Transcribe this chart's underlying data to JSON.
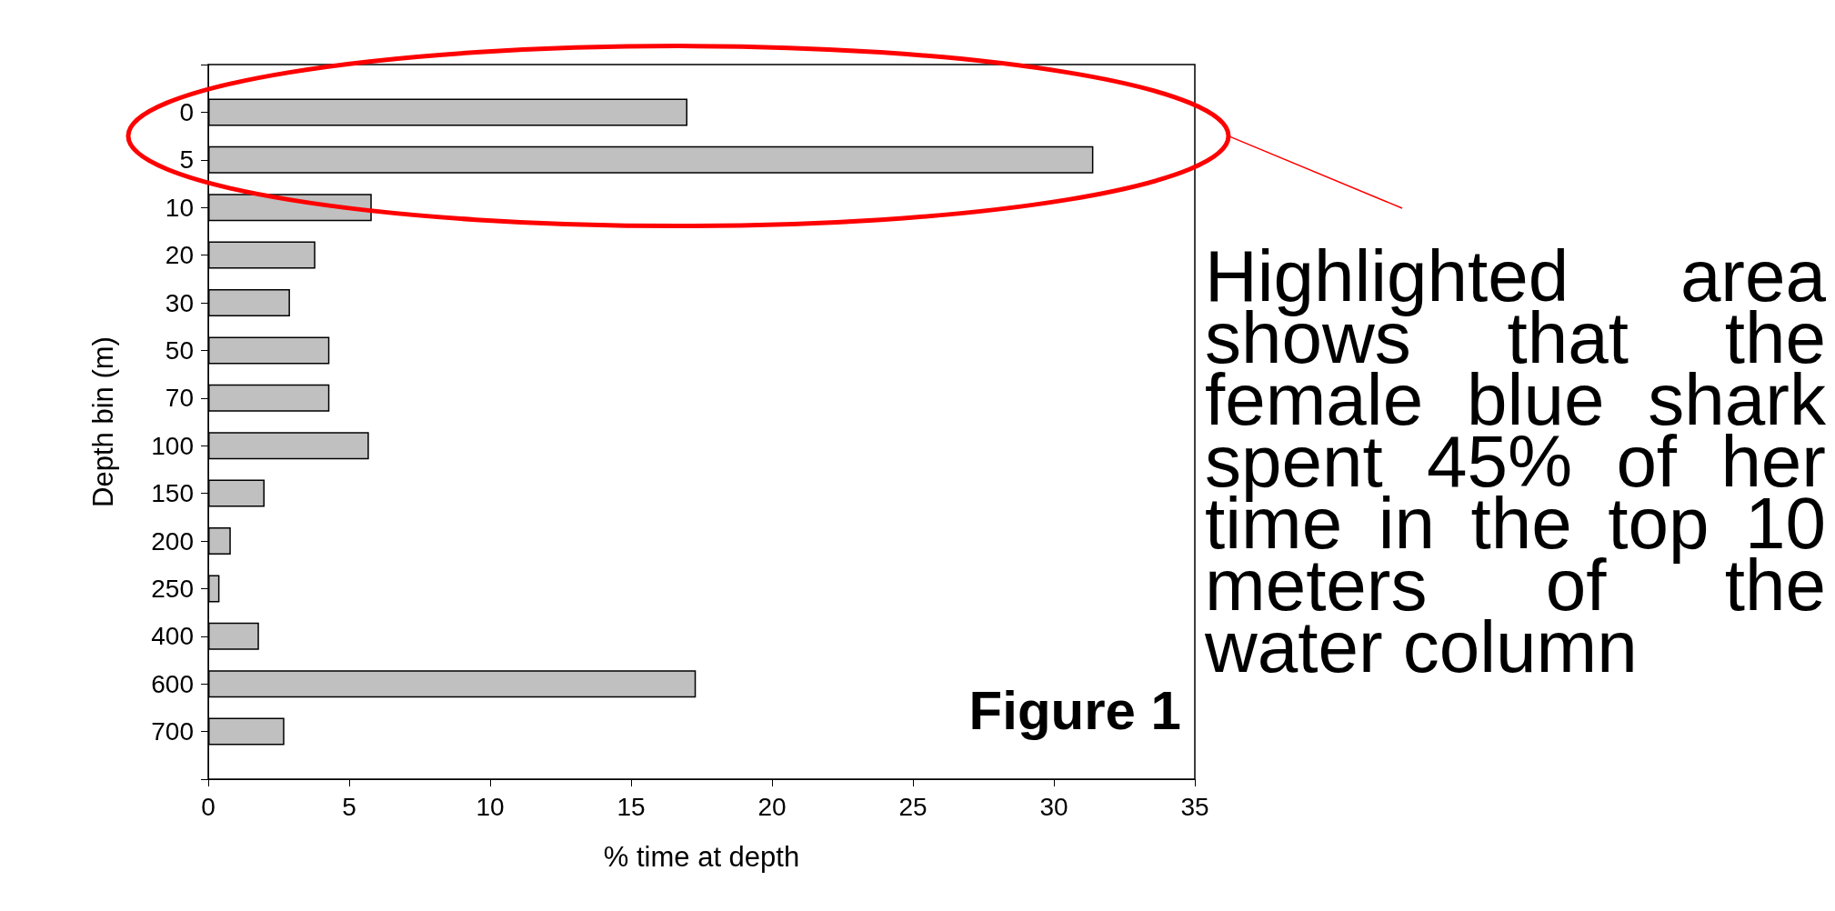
{
  "chart_data": {
    "type": "bar",
    "orientation": "horizontal",
    "xlabel": "% time at depth",
    "ylabel": "Depth bin (m)",
    "categories": [
      "0",
      "5",
      "10",
      "20",
      "30",
      "50",
      "70",
      "100",
      "150",
      "200",
      "250",
      "400",
      "600",
      "700"
    ],
    "values": [
      17.0,
      31.4,
      5.8,
      3.8,
      2.9,
      4.3,
      4.3,
      5.7,
      2.0,
      0.8,
      0.4,
      1.8,
      17.3,
      2.7
    ],
    "color": "#c0c0c0",
    "xlim": [
      0,
      35
    ],
    "xticks": [
      0,
      5,
      10,
      15,
      20,
      25,
      30,
      35
    ],
    "grid": false,
    "annotations": [
      "Figure 1",
      "Highlighted area shows that the female blue shark spent 45% of her time in the top 10 meters of the water column"
    ]
  }
}
